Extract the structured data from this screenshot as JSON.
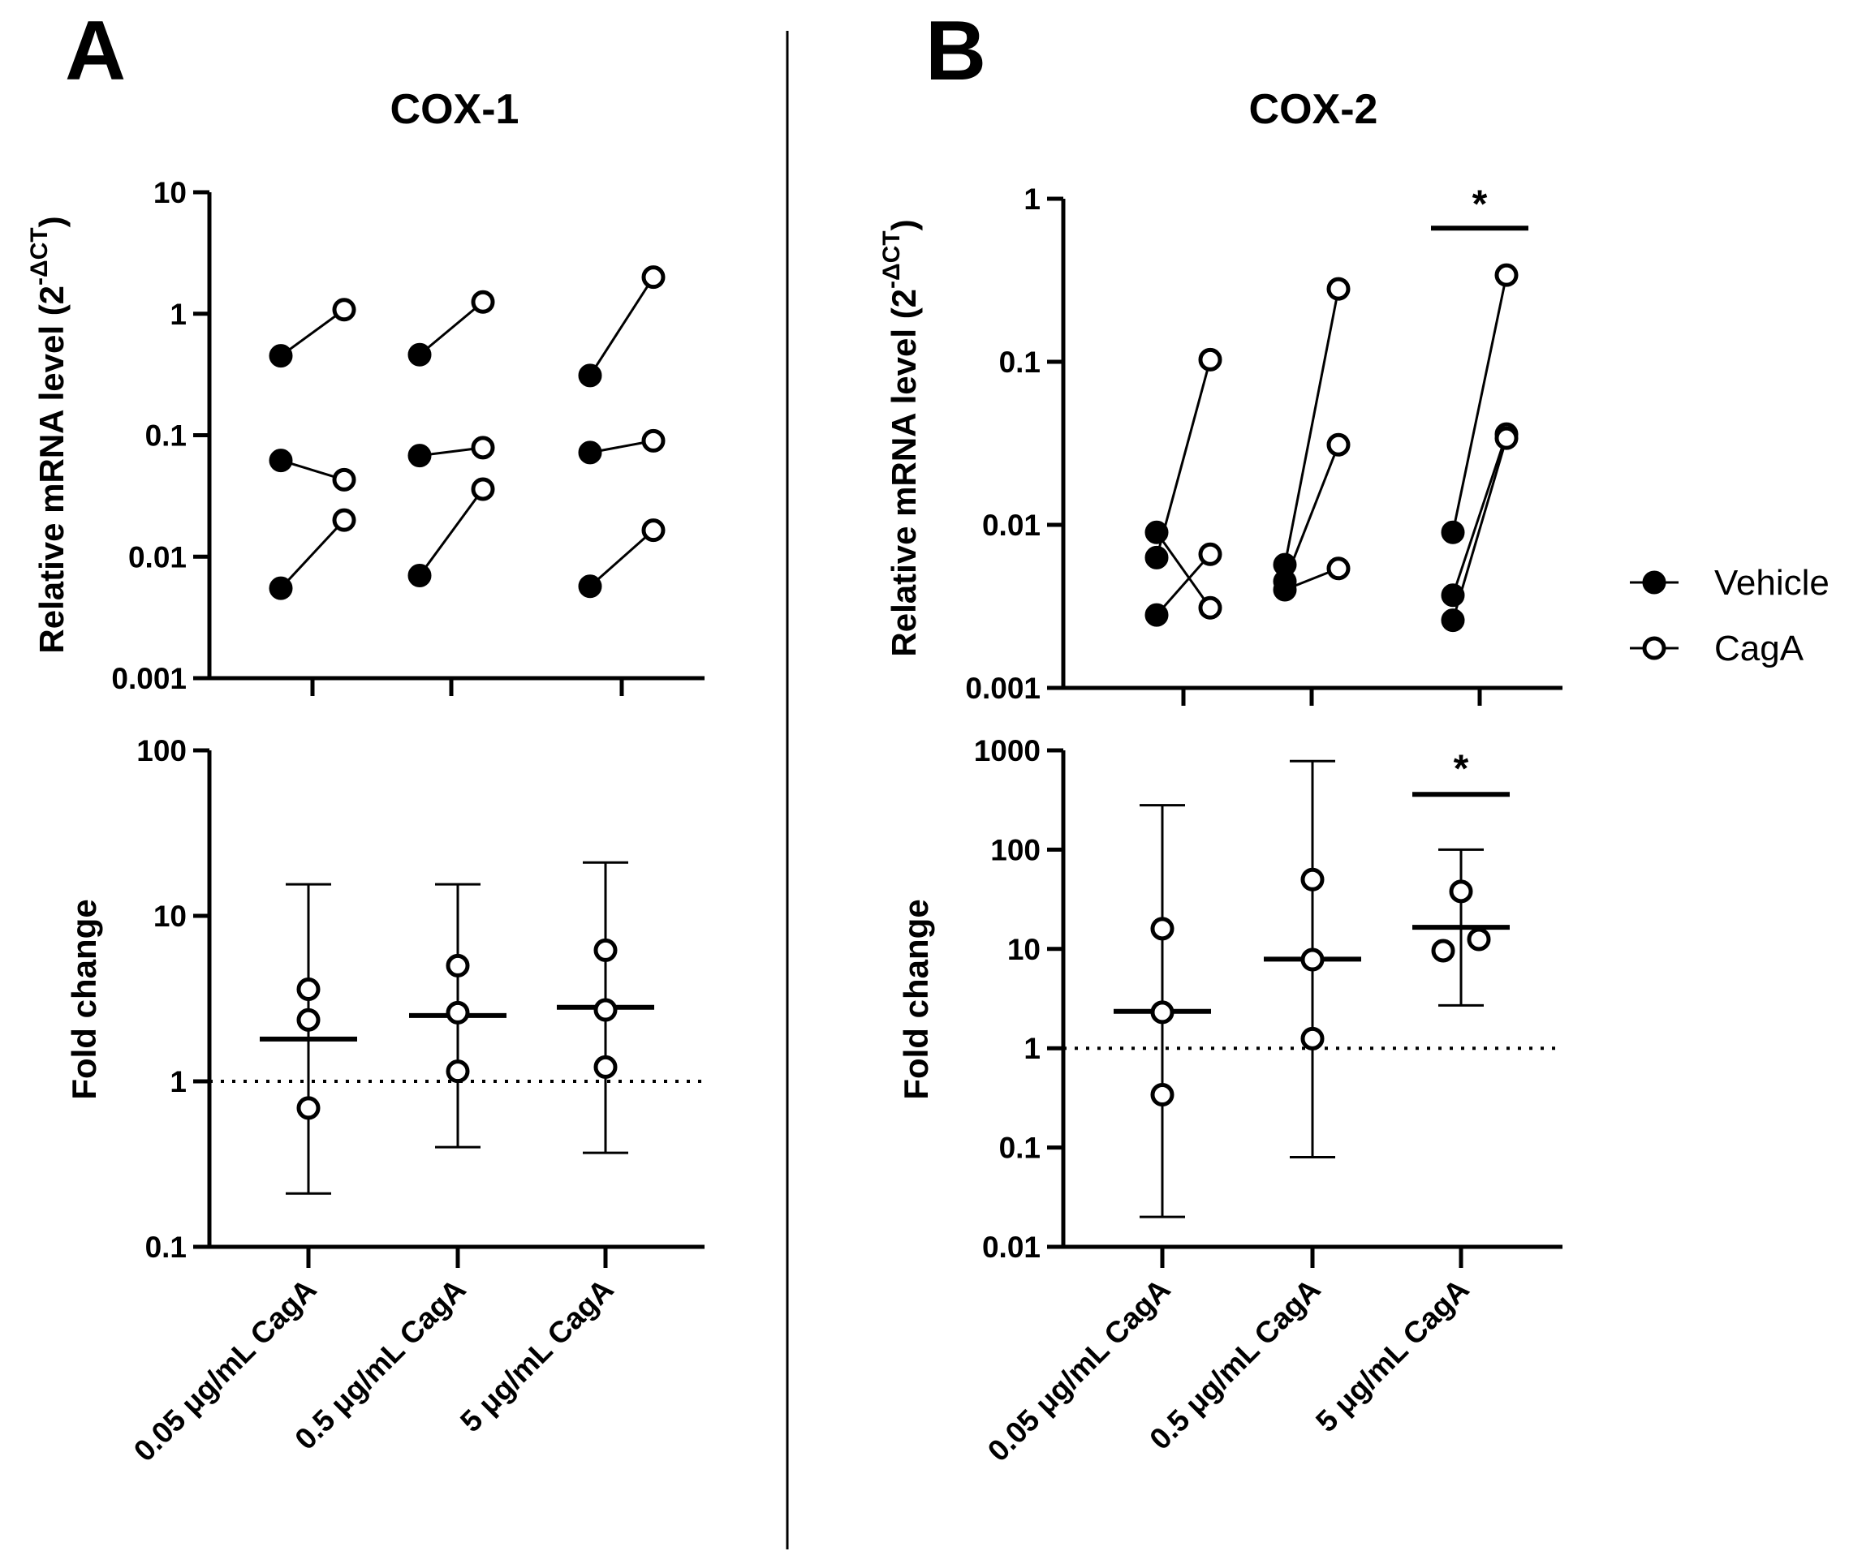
{
  "panel_letters": {
    "a": "A",
    "b": "B"
  },
  "legend": {
    "vehicle": "Vehicle",
    "caga": "CagA"
  },
  "categories": [
    "0.05 μg/mL CagA",
    "0.5 μg/mL CagA",
    "5 μg/mL CagA"
  ],
  "colors": {
    "ink": "#000000",
    "open_fill": "#ffffff"
  },
  "chart_data": [
    {
      "id": "cox1_mrna",
      "type": "paired-scatter",
      "title": "COX-1",
      "ylabel": "Relative mRNA level (2",
      "ylabel_sup": "-ΔCT",
      "ylabel_close": ")",
      "yscale": "log",
      "ylim": [
        0.001,
        10
      ],
      "yticks": [
        0.001,
        0.01,
        0.1,
        1,
        10
      ],
      "ytick_labels": [
        "0.001",
        "0.01",
        "0.1",
        "1",
        "10"
      ],
      "significance": [],
      "groups": [
        {
          "category": "0.05 μg/mL CagA",
          "pairs": [
            {
              "vehicle": 0.45,
              "caga": 1.08
            },
            {
              "vehicle": 0.062,
              "caga": 0.043
            },
            {
              "vehicle": 0.0055,
              "caga": 0.02
            }
          ]
        },
        {
          "category": "0.5 μg/mL CagA",
          "pairs": [
            {
              "vehicle": 0.46,
              "caga": 1.25
            },
            {
              "vehicle": 0.068,
              "caga": 0.079
            },
            {
              "vehicle": 0.007,
              "caga": 0.036
            }
          ]
        },
        {
          "category": "5 μg/mL CagA",
          "pairs": [
            {
              "vehicle": 0.31,
              "caga": 2.0
            },
            {
              "vehicle": 0.072,
              "caga": 0.09
            },
            {
              "vehicle": 0.0057,
              "caga": 0.0165
            }
          ]
        }
      ]
    },
    {
      "id": "cox2_mrna",
      "type": "paired-scatter",
      "title": "COX-2",
      "ylabel": "Relative mRNA level (2",
      "ylabel_sup": "-ΔCT",
      "ylabel_close": ")",
      "yscale": "log",
      "ylim": [
        0.001,
        1
      ],
      "yticks": [
        0.001,
        0.01,
        0.1,
        1
      ],
      "ytick_labels": [
        "0.001",
        "0.01",
        "0.1",
        "1"
      ],
      "significance": [
        {
          "category_index": 2,
          "label": "*",
          "y": 0.66
        }
      ],
      "groups": [
        {
          "category": "0.05 μg/mL CagA",
          "pairs": [
            {
              "vehicle": 0.009,
              "caga": 0.0031
            },
            {
              "vehicle": 0.0063,
              "caga": 0.103
            },
            {
              "vehicle": 0.0028,
              "caga": 0.0066
            }
          ]
        },
        {
          "category": "0.5 μg/mL CagA",
          "pairs": [
            {
              "vehicle": 0.0057,
              "caga": 0.28
            },
            {
              "vehicle": 0.0045,
              "caga": 0.031
            },
            {
              "vehicle": 0.004,
              "caga": 0.0054
            }
          ]
        },
        {
          "category": "5 μg/mL CagA",
          "pairs": [
            {
              "vehicle": 0.009,
              "caga": 0.34
            },
            {
              "vehicle": 0.0037,
              "caga": 0.036
            },
            {
              "vehicle": 0.0026,
              "caga": 0.034
            }
          ]
        }
      ]
    },
    {
      "id": "cox1_fold",
      "type": "scatter-mean-error",
      "ylabel": "Fold change",
      "yscale": "log",
      "ylim": [
        0.1,
        100
      ],
      "yticks": [
        0.1,
        1,
        10,
        100
      ],
      "ytick_labels": [
        "0.1",
        "1",
        "10",
        "100"
      ],
      "reference_line": 1,
      "significance": [],
      "groups": [
        {
          "category": "0.05 μg/mL CagA",
          "points": [
            3.6,
            2.35,
            0.69
          ],
          "mean": 1.8,
          "err_low": 0.21,
          "err_high": 15.5
        },
        {
          "category": "0.5 μg/mL CagA",
          "points": [
            5.0,
            2.6,
            1.15
          ],
          "mean": 2.5,
          "err_low": 0.4,
          "err_high": 15.5
        },
        {
          "category": "5 μg/mL CagA",
          "points": [
            6.2,
            2.7,
            1.22
          ],
          "mean": 2.8,
          "err_low": 0.37,
          "err_high": 21.0
        }
      ]
    },
    {
      "id": "cox2_fold",
      "type": "scatter-mean-error",
      "ylabel": "Fold change",
      "yscale": "log",
      "ylim": [
        0.01,
        1000
      ],
      "yticks": [
        0.01,
        0.1,
        1,
        10,
        100,
        1000
      ],
      "ytick_labels": [
        "0.01",
        "0.1",
        "1",
        "10",
        "100",
        "1000"
      ],
      "reference_line": 1,
      "significance": [
        {
          "category_index": 2,
          "label": "*",
          "y": 360
        }
      ],
      "groups": [
        {
          "category": "0.05 μg/mL CagA",
          "points": [
            16.0,
            2.3,
            0.34
          ],
          "mean": 2.35,
          "err_low": 0.02,
          "err_high": 280
        },
        {
          "category": "0.5 μg/mL CagA",
          "points": [
            50.0,
            7.8,
            1.25
          ],
          "mean": 7.9,
          "err_low": 0.08,
          "err_high": 780
        },
        {
          "category": "5 μg/mL CagA",
          "points": [
            38.0,
            12.5,
            9.6
          ],
          "mean": 16.5,
          "err_low": 2.7,
          "err_high": 100
        }
      ]
    }
  ]
}
